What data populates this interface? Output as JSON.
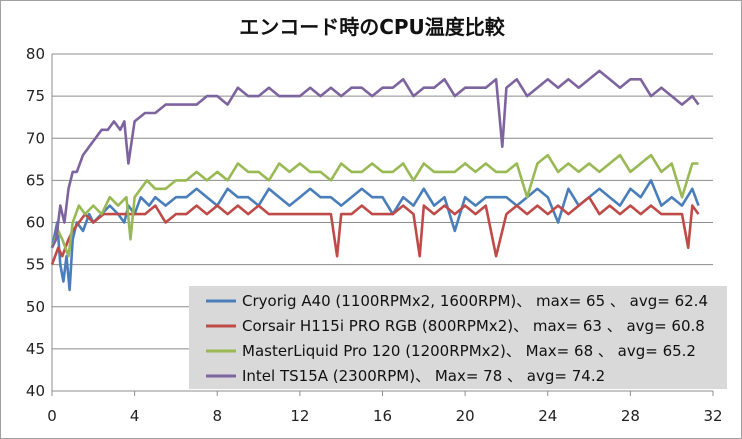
{
  "chart_data": {
    "type": "line",
    "title": "エンコード時のCPU温度比較",
    "xlabel": "",
    "ylabel": "",
    "xlim": [
      0,
      32
    ],
    "ylim": [
      40,
      80
    ],
    "x_ticks": [
      0,
      4,
      8,
      12,
      16,
      20,
      24,
      28,
      32
    ],
    "y_ticks": [
      40,
      45,
      50,
      55,
      60,
      65,
      70,
      75,
      80
    ],
    "grid": "horizontal",
    "legend_position": "bottom-right",
    "series": [
      {
        "name": "Cryorig A40 (1100RPMx2, 1600RPM)、 max= 65 、 avg= 62.4",
        "color": "#4a7ebb",
        "x": [
          0,
          0.25,
          0.4,
          0.55,
          0.7,
          0.85,
          1.0,
          1.2,
          1.5,
          1.8,
          2.0,
          2.4,
          2.8,
          3.2,
          3.5,
          3.7,
          4.0,
          4.3,
          4.7,
          5.0,
          5.5,
          6.0,
          6.5,
          7.0,
          7.5,
          8.0,
          8.5,
          9.0,
          9.5,
          10.0,
          10.5,
          11.0,
          11.5,
          12.0,
          12.5,
          13.0,
          13.5,
          14.0,
          14.5,
          15.0,
          15.5,
          16.0,
          16.5,
          17.0,
          17.5,
          18.0,
          18.5,
          19.0,
          19.5,
          20.0,
          20.5,
          21.0,
          21.5,
          22.0,
          22.5,
          23.0,
          23.5,
          24.0,
          24.5,
          25.0,
          25.5,
          26.0,
          26.5,
          27.0,
          27.5,
          28.0,
          28.5,
          29.0,
          29.5,
          30.0,
          30.5,
          31.0,
          31.3
        ],
        "values": [
          57,
          60,
          55,
          53,
          56,
          52,
          58,
          60,
          59,
          61,
          60,
          61,
          62,
          61,
          60,
          62,
          61,
          63,
          62,
          63,
          62,
          63,
          63,
          64,
          63,
          62,
          64,
          63,
          63,
          62,
          64,
          63,
          62,
          63,
          64,
          63,
          63,
          62,
          63,
          64,
          63,
          63,
          61,
          63,
          62,
          64,
          62,
          63,
          59,
          63,
          62,
          63,
          63,
          63,
          62,
          63,
          64,
          63,
          60,
          64,
          62,
          63,
          64,
          63,
          62,
          64,
          63,
          65,
          62,
          63,
          62,
          64,
          62
        ]
      },
      {
        "name": "Corsair H115i PRO RGB (800RPMx2)、 max= 63 、 avg= 60.8",
        "color": "#be4b48",
        "x": [
          0,
          0.3,
          0.5,
          0.8,
          1.0,
          1.3,
          1.6,
          2.0,
          2.5,
          3.0,
          3.5,
          4.0,
          4.5,
          5.0,
          5.5,
          6.0,
          6.5,
          7.0,
          7.5,
          8.0,
          8.5,
          9.0,
          9.5,
          10.0,
          10.5,
          11.0,
          11.5,
          12.0,
          12.5,
          13.0,
          13.5,
          13.8,
          14.0,
          14.5,
          15.0,
          15.5,
          16.0,
          16.5,
          17.0,
          17.5,
          17.8,
          18.0,
          18.5,
          19.0,
          19.5,
          20.0,
          20.5,
          21.0,
          21.5,
          22.0,
          22.5,
          23.0,
          23.5,
          24.0,
          24.5,
          25.0,
          25.5,
          26.0,
          26.5,
          27.0,
          27.5,
          28.0,
          28.5,
          29.0,
          29.5,
          30.0,
          30.5,
          30.8,
          31.0,
          31.3
        ],
        "values": [
          55,
          57,
          56,
          58,
          59,
          60,
          61,
          60,
          61,
          61,
          61,
          61,
          61,
          62,
          60,
          61,
          61,
          62,
          61,
          62,
          61,
          62,
          61,
          62,
          61,
          61,
          61,
          61,
          61,
          61,
          61,
          56,
          61,
          61,
          62,
          61,
          61,
          61,
          62,
          61,
          56,
          62,
          61,
          62,
          61,
          62,
          61,
          62,
          56,
          61,
          62,
          61,
          62,
          61,
          62,
          61,
          62,
          63,
          61,
          62,
          61,
          62,
          61,
          62,
          61,
          61,
          61,
          57,
          62,
          61
        ]
      },
      {
        "name": "MasterLiquid Pro 120 (1200RPMx2)、 Max= 68 、 avg= 65.2",
        "color": "#98b954",
        "x": [
          0,
          0.3,
          0.5,
          0.8,
          1.0,
          1.3,
          1.6,
          2.0,
          2.4,
          2.8,
          3.2,
          3.6,
          3.8,
          4.0,
          4.3,
          4.6,
          5.0,
          5.5,
          6.0,
          6.5,
          7.0,
          7.5,
          8.0,
          8.5,
          9.0,
          9.5,
          10.0,
          10.5,
          11.0,
          11.5,
          12.0,
          12.5,
          13.0,
          13.5,
          14.0,
          14.5,
          15.0,
          15.5,
          16.0,
          16.5,
          17.0,
          17.5,
          18.0,
          18.5,
          19.0,
          19.5,
          20.0,
          20.5,
          21.0,
          21.5,
          22.0,
          22.5,
          23.0,
          23.5,
          24.0,
          24.5,
          25.0,
          25.5,
          26.0,
          26.5,
          27.0,
          27.5,
          28.0,
          28.5,
          29.0,
          29.5,
          30.0,
          30.5,
          31.0,
          31.3
        ],
        "values": [
          57,
          59,
          58,
          56,
          60,
          62,
          61,
          62,
          61,
          63,
          62,
          63,
          58,
          63,
          64,
          65,
          64,
          64,
          65,
          65,
          66,
          65,
          66,
          65,
          67,
          66,
          66,
          65,
          67,
          66,
          67,
          66,
          66,
          65,
          67,
          66,
          66,
          67,
          66,
          66,
          67,
          65,
          67,
          66,
          66,
          66,
          67,
          66,
          67,
          66,
          66,
          67,
          63,
          67,
          68,
          66,
          67,
          66,
          67,
          66,
          67,
          68,
          66,
          67,
          68,
          66,
          67,
          63,
          67,
          67
        ]
      },
      {
        "name": "Intel TS15A (2300RPM)、 Max= 78 、 avg= 74.2",
        "color": "#7e649e",
        "x": [
          0,
          0.2,
          0.4,
          0.6,
          0.8,
          1.0,
          1.2,
          1.5,
          1.8,
          2.1,
          2.4,
          2.7,
          3.0,
          3.3,
          3.5,
          3.7,
          4.0,
          4.5,
          5.0,
          5.5,
          6.0,
          6.5,
          7.0,
          7.5,
          8.0,
          8.5,
          9.0,
          9.5,
          10.0,
          10.5,
          11.0,
          11.5,
          12.0,
          12.5,
          13.0,
          13.5,
          14.0,
          14.5,
          15.0,
          15.5,
          16.0,
          16.5,
          17.0,
          17.5,
          18.0,
          18.5,
          19.0,
          19.5,
          20.0,
          20.5,
          21.0,
          21.5,
          21.8,
          22.0,
          22.5,
          23.0,
          23.5,
          24.0,
          24.5,
          25.0,
          25.5,
          26.0,
          26.5,
          27.0,
          27.5,
          28.0,
          28.5,
          29.0,
          29.5,
          30.0,
          30.5,
          31.0,
          31.3
        ],
        "values": [
          57,
          58,
          62,
          60,
          64,
          66,
          66,
          68,
          69,
          70,
          71,
          71,
          72,
          71,
          72,
          67,
          72,
          73,
          73,
          74,
          74,
          74,
          74,
          75,
          75,
          74,
          76,
          75,
          75,
          76,
          75,
          75,
          75,
          76,
          75,
          76,
          75,
          76,
          76,
          75,
          76,
          76,
          77,
          75,
          76,
          76,
          77,
          75,
          76,
          76,
          76,
          77,
          69,
          76,
          77,
          75,
          76,
          77,
          76,
          77,
          76,
          77,
          78,
          77,
          76,
          77,
          77,
          75,
          76,
          75,
          74,
          75,
          74
        ]
      }
    ]
  }
}
